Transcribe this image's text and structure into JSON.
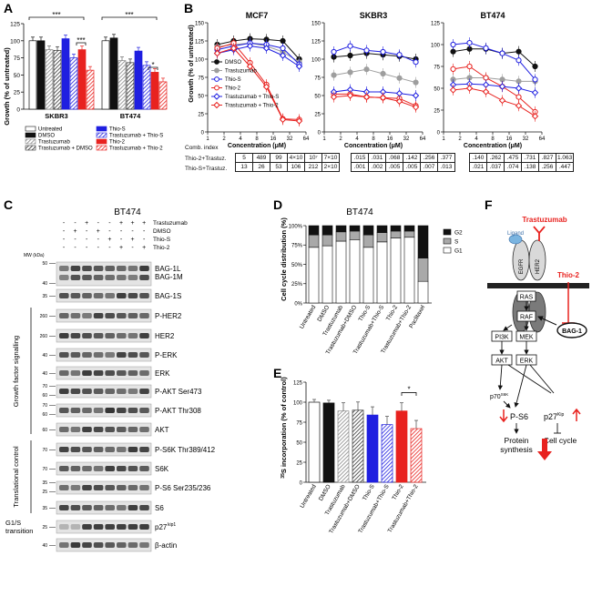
{
  "panels": {
    "A": "A",
    "B": "B",
    "C": "C",
    "D": "D",
    "E": "E",
    "F": "F"
  },
  "colors": {
    "black": "#111111",
    "gray": "#9e9e9e",
    "blue": "#1f1fe0",
    "red": "#e8221f",
    "lightgray": "#bdbdbd"
  },
  "panelA": {
    "ylabel": "Growth (% of untreated)",
    "ticks": [
      "0",
      "25",
      "50",
      "75",
      "100",
      "125"
    ],
    "groups": [
      "SKBR3",
      "BT474"
    ],
    "sig": [
      "***",
      "***",
      "***",
      "*"
    ],
    "legend": [
      {
        "label": "Untreated",
        "style": "white"
      },
      {
        "label": "DMSO",
        "style": "black"
      },
      {
        "label": "Trastuzumab",
        "style": "hatch-gray"
      },
      {
        "label": "Trastuzumab + DMSO",
        "style": "hatch-dark"
      },
      {
        "label": "Thio-S",
        "style": "blue"
      },
      {
        "label": "Trastuzumab + Thio-S",
        "style": "hatch-blue"
      },
      {
        "label": "Thio-2",
        "style": "red"
      },
      {
        "label": "Trastuzumab + Thio-2",
        "style": "hatch-red"
      }
    ]
  },
  "chart_data": [
    {
      "type": "bar",
      "panel": "A",
      "ylabel": "Growth (% of untreated)",
      "ylim": [
        0,
        125
      ],
      "categories": [
        "SKBR3",
        "BT474"
      ],
      "series": [
        {
          "name": "Untreated",
          "values": [
            100,
            100
          ]
        },
        {
          "name": "DMSO",
          "values": [
            100,
            104
          ]
        },
        {
          "name": "Trastuzumab",
          "values": [
            87,
            71
          ]
        },
        {
          "name": "Trastuzumab + DMSO",
          "values": [
            86,
            68
          ]
        },
        {
          "name": "Thio-S",
          "values": [
            103,
            85
          ]
        },
        {
          "name": "Trastuzumab + Thio-S",
          "values": [
            75,
            64
          ]
        },
        {
          "name": "Thio-2",
          "values": [
            87,
            54
          ]
        },
        {
          "name": "Trastuzumab + Thio-2",
          "values": [
            57,
            40
          ]
        }
      ]
    },
    {
      "type": "line",
      "panel": "B",
      "title": "MCF7",
      "xlabel": "Concentration (μM)",
      "ylabel": "Growth (% of untreated)",
      "ylim": [
        0,
        150
      ],
      "x": [
        1.5,
        3,
        6,
        12,
        24,
        48
      ],
      "series": [
        {
          "name": "DMSO",
          "values": [
            120,
            125,
            128,
            127,
            125,
            100
          ]
        },
        {
          "name": "Trastuzumab",
          "values": [
            117,
            120,
            122,
            118,
            110,
            96
          ]
        },
        {
          "name": "Thio-S",
          "values": [
            113,
            118,
            122,
            120,
            115,
            93
          ]
        },
        {
          "name": "Thio-2",
          "values": [
            115,
            122,
            95,
            65,
            18,
            17
          ]
        },
        {
          "name": "Trastuzumab + Thio-S",
          "values": [
            108,
            113,
            118,
            115,
            105,
            90
          ]
        },
        {
          "name": "Trastuzumab + Thio-2",
          "values": [
            108,
            115,
            90,
            62,
            17,
            15
          ]
        }
      ]
    },
    {
      "type": "line",
      "panel": "B",
      "title": "SKBR3",
      "xlabel": "Concentration (μM)",
      "ylim": [
        0,
        150
      ],
      "x": [
        1.5,
        3,
        6,
        12,
        24,
        48
      ],
      "series": [
        {
          "name": "DMSO",
          "values": [
            103,
            105,
            108,
            106,
            104,
            100
          ]
        },
        {
          "name": "Trastuzumab",
          "values": [
            78,
            82,
            86,
            80,
            74,
            68
          ]
        },
        {
          "name": "Thio-S",
          "values": [
            110,
            118,
            112,
            110,
            106,
            96
          ]
        },
        {
          "name": "Thio-2",
          "values": [
            52,
            52,
            48,
            47,
            46,
            36
          ]
        },
        {
          "name": "Trastuzumab + Thio-S",
          "values": [
            55,
            58,
            55,
            55,
            53,
            50
          ]
        },
        {
          "name": "Trastuzumab + Thio-2",
          "values": [
            48,
            50,
            48,
            47,
            42,
            34
          ]
        }
      ]
    },
    {
      "type": "line",
      "panel": "B",
      "title": "BT474",
      "xlabel": "Concentration (μM)",
      "ylim": [
        0,
        125
      ],
      "x": [
        1.5,
        3,
        6,
        12,
        24,
        48
      ],
      "series": [
        {
          "name": "DMSO",
          "values": [
            92,
            95,
            95,
            90,
            92,
            75
          ]
        },
        {
          "name": "Trastuzumab",
          "values": [
            60,
            62,
            62,
            60,
            58,
            58
          ]
        },
        {
          "name": "Thio-S",
          "values": [
            100,
            102,
            96,
            90,
            82,
            60
          ]
        },
        {
          "name": "Thio-2",
          "values": [
            72,
            75,
            62,
            52,
            40,
            23
          ]
        },
        {
          "name": "Trastuzumab + Thio-S",
          "values": [
            54,
            55,
            54,
            52,
            50,
            45
          ]
        },
        {
          "name": "Trastuzumab + Thio-2",
          "values": [
            48,
            50,
            46,
            36,
            30,
            18
          ]
        }
      ]
    },
    {
      "type": "bar",
      "panel": "D",
      "title": "BT474",
      "stacked": true,
      "ylabel": "Cell cycle distribution (%)",
      "ylim": [
        0,
        100
      ],
      "categories": [
        "Untreated",
        "DMSO",
        "Trastuzumab",
        "Trastuzumab+DMSO",
        "Thio-S",
        "Trastuzumab+Thio-S",
        "Thio-2",
        "Trastuzumab+Thio-2",
        "Paclitaxel"
      ],
      "series": [
        {
          "name": "G1",
          "values": [
            72,
            74,
            80,
            82,
            72,
            79,
            84,
            85,
            28
          ]
        },
        {
          "name": "S",
          "values": [
            16,
            14,
            12,
            11,
            16,
            12,
            9,
            8,
            30
          ]
        },
        {
          "name": "G2",
          "values": [
            12,
            12,
            8,
            7,
            12,
            9,
            7,
            7,
            42
          ]
        }
      ]
    },
    {
      "type": "bar",
      "panel": "E",
      "ylabel": "35S incorporation (% of control)",
      "ylim": [
        0,
        125
      ],
      "categories": [
        "Untreated",
        "DMSO",
        "Trastuzumab",
        "Trastuzumab+DMSO",
        "Thio-S",
        "Trastuzumab+Thio-S",
        "Thio-2",
        "Trastuzumab+Thio-2"
      ],
      "values": [
        100,
        99,
        89,
        90,
        84,
        72,
        89,
        67
      ]
    }
  ],
  "panelB": {
    "titles": [
      "MCF7",
      "SKBR3",
      "BT474"
    ],
    "ylabel": "Growth (% of untreated)",
    "xlabel": "Concentration (μM)",
    "xticks": [
      "1",
      "2",
      "4",
      "8",
      "16",
      "32",
      "64"
    ],
    "yticks1": [
      "0",
      "25",
      "50",
      "75",
      "100",
      "125",
      "150"
    ],
    "yticks3": [
      "0",
      "25",
      "50",
      "75",
      "100",
      "125"
    ],
    "legend": [
      "DMSO",
      "Trastuzumab",
      "Thio-S",
      "Thio-2",
      "Trastuzumab + Thio-S",
      "Trastuzumab + Thio-2"
    ]
  },
  "combIndex": {
    "header": "Comb. index",
    "row1": "Thio-2+Trastuz.",
    "row2": "Thio-S+Trastuz.",
    "t1": [
      [
        "5",
        "489",
        "99",
        "4×10",
        "10⁷",
        "7×10"
      ],
      [
        "13",
        "26",
        "53",
        "106",
        "212",
        "2×10"
      ]
    ],
    "t2": [
      [
        ".015",
        ".031",
        ".068",
        ".142",
        ".256",
        ".377"
      ],
      [
        ".001",
        ".002",
        ".005",
        ".005",
        ".007",
        ".013"
      ]
    ],
    "t3": [
      [
        ".140",
        ".262",
        ".475",
        ".731",
        ".827",
        "1.063"
      ],
      [
        ".021",
        ".037",
        ".074",
        ".138",
        ".256",
        ".447"
      ]
    ]
  },
  "panelC": {
    "title": "BT474",
    "treatments": [
      "Trastuzumab",
      "DMSO",
      "Thio-S",
      "Thio-2"
    ],
    "signs": [
      [
        "-",
        "-",
        "+",
        "-",
        "-",
        "+",
        "+",
        "+"
      ],
      [
        "-",
        "+",
        "-",
        "+",
        "-",
        "-",
        "-",
        "-"
      ],
      [
        "-",
        "-",
        "-",
        "-",
        "+",
        "-",
        "+",
        "-"
      ],
      [
        "-",
        "-",
        "-",
        "-",
        "-",
        "+",
        "-",
        "+"
      ]
    ],
    "mw": "MW (kDa)",
    "blots": [
      {
        "label": "BAG-1L",
        "label2": "BAG-1M",
        "mw": [
          "50",
          "40"
        ]
      },
      {
        "label": "BAG-1S",
        "mw": [
          "35"
        ]
      },
      {
        "label": "P-HER2",
        "mw": [
          "260"
        ]
      },
      {
        "label": "HER2",
        "mw": [
          "260"
        ]
      },
      {
        "label": "P-ERK",
        "mw": [
          "40"
        ]
      },
      {
        "label": "ERK",
        "mw": [
          "40"
        ]
      },
      {
        "label": "P-AKT Ser473",
        "mw": [
          "70",
          "60"
        ]
      },
      {
        "label": "P-AKT Thr308",
        "mw": [
          "70",
          "60"
        ]
      },
      {
        "label": "AKT",
        "mw": [
          "60"
        ]
      },
      {
        "label": "P-S6K Thr389/412",
        "mw": [
          "70"
        ]
      },
      {
        "label": "S6K",
        "mw": [
          "70"
        ]
      },
      {
        "label": "P-S6 Ser235/236",
        "mw": [
          "35",
          "25"
        ]
      },
      {
        "label": "S6",
        "mw": [
          "35"
        ]
      },
      {
        "label": "p27",
        "sup": "kip1",
        "mw": [
          "25"
        ]
      },
      {
        "label": "β-actin",
        "mw": [
          "40"
        ]
      }
    ],
    "groupLabels": [
      "Growth factor signalling",
      "Translational control",
      "G1/S transition"
    ]
  },
  "panelD": {
    "title": "BT474",
    "ylabel": "Cell cycle distribution (%)",
    "yticks": [
      "0",
      "25",
      "50",
      "75",
      "100"
    ],
    "legend": [
      "G2",
      "S",
      "G1"
    ]
  },
  "panelE": {
    "ylabel": "35S incorporation (% of control)",
    "ylabelSup": "35",
    "ylabelMain": "S incorporation (% of control)",
    "yticks": [
      "0",
      "25",
      "50",
      "75",
      "100",
      "125"
    ],
    "sig": "*"
  },
  "panelF": {
    "trastuzumab": "Trastuzumab",
    "ligand": "Ligand",
    "egfr": "EGFR",
    "her2": "HER2",
    "thio2": "Thio-2",
    "bag1": "BAG-1",
    "ras": "RAS",
    "raf": "RAF",
    "mek": "MEK",
    "erk": "ERK",
    "pi3k": "PI3K",
    "akt": "AKT",
    "p70": "p70",
    "p70sup": "S6K",
    "ps6": "P-S6",
    "p27": "p27",
    "p27sup": "Kip",
    "protein": "Protein",
    "synthesis": "synthesis",
    "cellcycle": "Cell cycle"
  }
}
